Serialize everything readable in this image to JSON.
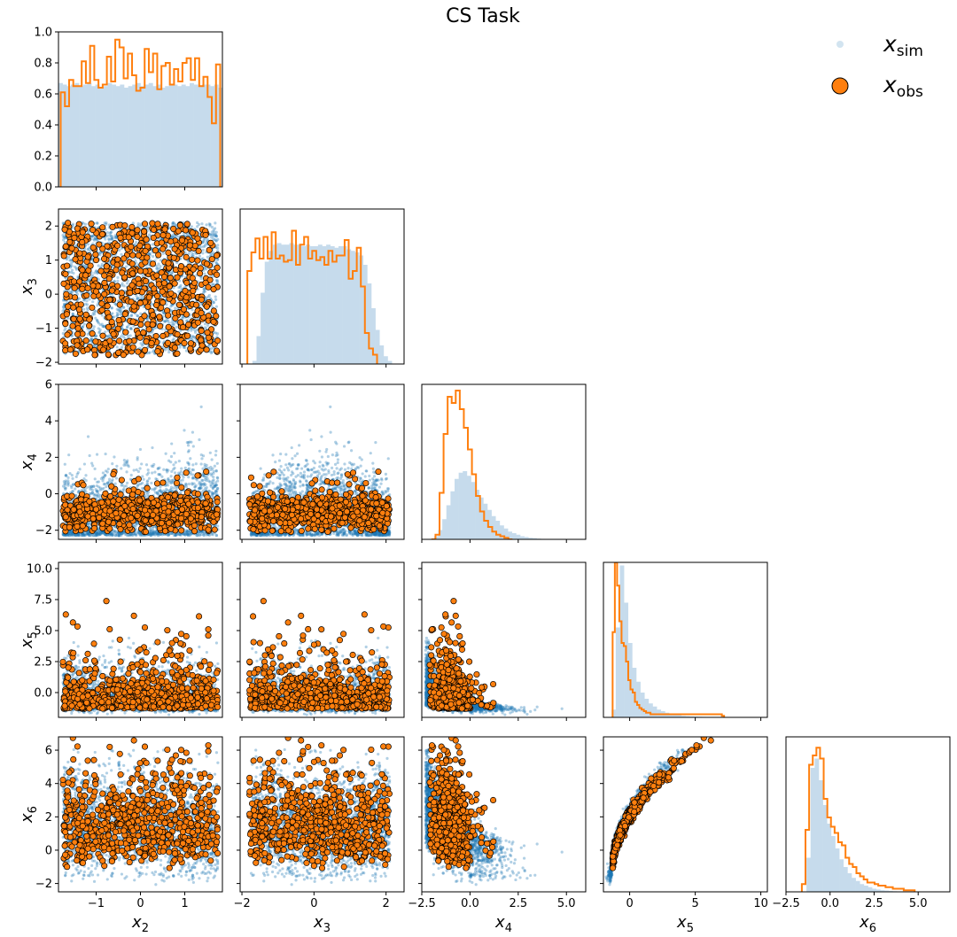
{
  "chart_data": {
    "type": "scatter",
    "title": "CS Task",
    "legend": {
      "placement": "top-right",
      "entries": [
        {
          "symbol": "x",
          "sub": "sim",
          "style": "light blue point"
        },
        {
          "symbol": "x",
          "sub": "obs",
          "style": "orange circle with black edge"
        }
      ]
    },
    "variables": [
      {
        "name": "x",
        "sub": "2"
      },
      {
        "name": "x",
        "sub": "3"
      },
      {
        "name": "x",
        "sub": "4"
      },
      {
        "name": "x",
        "sub": "5"
      },
      {
        "name": "x",
        "sub": "6"
      }
    ],
    "ranges": [
      [
        -1.85,
        1.85
      ],
      [
        -2.05,
        2.5
      ],
      [
        -2.5,
        6.0
      ],
      [
        -2.0,
        10.5
      ],
      [
        -2.5,
        6.8
      ]
    ],
    "diag_ylim": [
      0.0,
      1.0
    ],
    "diag_yticks": [
      "0.0",
      "0.2",
      "0.4",
      "0.6",
      "0.8",
      "1.0"
    ],
    "row_ticks": {
      "1": [
        "-2",
        "-1",
        "0",
        "1",
        "2"
      ],
      "2": [
        "-2",
        "0",
        "2",
        "4",
        "6"
      ],
      "3": [
        "0.0",
        "2.5",
        "5.0",
        "7.5",
        "10.0"
      ],
      "4": [
        "-2",
        "0",
        "2",
        "4",
        "6"
      ]
    },
    "col_ticks": {
      "0": [
        "-1",
        "0",
        "1"
      ],
      "1": [
        "-2",
        "0",
        "2"
      ],
      "2": [
        "-2.5",
        "0.0",
        "2.5",
        "5.0"
      ],
      "3": [
        "0",
        "5",
        "10"
      ],
      "4": [
        "-2.5",
        "0.0",
        "2.5",
        "5.0"
      ]
    },
    "tick_values": {
      "-2.5": -2.5,
      "-2": -2,
      "-1": -1,
      "0": 0,
      "0.0": 0,
      "1": 1,
      "2": 2,
      "2.5": 2.5,
      "4": 4,
      "5": 5,
      "5.0": 5,
      "6": 6,
      "7.5": 7.5,
      "10": 10,
      "10.0": 10,
      "0.2": 0.2,
      "0.4": 0.4,
      "0.6": 0.6,
      "0.8": 0.8,
      "1.0": 1.0
    },
    "sim_hist": [
      [
        0.67,
        0.66,
        0.65,
        0.66,
        0.67,
        0.65,
        0.66,
        0.67,
        0.65,
        0.66,
        0.64,
        0.65,
        0.67,
        0.66,
        0.65,
        0.66,
        0.64,
        0.65,
        0.66,
        0.67,
        0.65,
        0.66,
        0.67,
        0.65,
        0.66,
        0.64,
        0.65,
        0.66,
        0.66,
        0.65,
        0.66,
        0.65,
        0.67,
        0.66,
        0.65,
        0.66,
        0.66,
        0.65,
        0.66,
        0.64
      ],
      [
        0.0,
        0.0,
        0.0,
        0.02,
        0.18,
        0.46,
        0.66,
        0.73,
        0.77,
        0.78,
        0.77,
        0.77,
        0.78,
        0.77,
        0.77,
        0.76,
        0.77,
        0.76,
        0.76,
        0.77,
        0.76,
        0.77,
        0.76,
        0.75,
        0.76,
        0.76,
        0.74,
        0.73,
        0.72,
        0.7,
        0.64,
        0.52,
        0.36,
        0.22,
        0.12,
        0.05,
        0.02,
        0.0,
        0.0,
        0.0
      ],
      [
        0.0,
        0.0,
        0.0,
        0.02,
        0.06,
        0.13,
        0.22,
        0.31,
        0.39,
        0.43,
        0.44,
        0.41,
        0.37,
        0.32,
        0.27,
        0.23,
        0.19,
        0.15,
        0.12,
        0.09,
        0.07,
        0.05,
        0.04,
        0.03,
        0.02,
        0.015,
        0.01,
        0.008,
        0.005,
        0.003,
        0.002,
        0.001,
        0,
        0,
        0,
        0,
        0,
        0,
        0,
        0
      ],
      [
        0.0,
        0.0,
        0.05,
        0.58,
        0.98,
        0.74,
        0.48,
        0.32,
        0.23,
        0.16,
        0.12,
        0.09,
        0.07,
        0.05,
        0.04,
        0.03,
        0.025,
        0.02,
        0.015,
        0.01,
        0.008,
        0.006,
        0.005,
        0.004,
        0.003,
        0.002,
        0.002,
        0.001,
        0.001,
        0.001,
        0,
        0,
        0,
        0,
        0,
        0,
        0,
        0,
        0,
        0
      ],
      [
        0.0,
        0.0,
        0.0,
        0.0,
        0.0,
        0.22,
        0.8,
        0.86,
        0.72,
        0.56,
        0.44,
        0.36,
        0.28,
        0.21,
        0.16,
        0.12,
        0.09,
        0.07,
        0.05,
        0.04,
        0.03,
        0.02,
        0.015,
        0.01,
        0.008,
        0.006,
        0.004,
        0.003,
        0.002,
        0.001,
        0.001,
        0,
        0,
        0,
        0,
        0,
        0,
        0,
        0,
        0
      ]
    ],
    "obs_hist": [
      [
        0.61,
        0.52,
        0.69,
        0.65,
        0.65,
        0.81,
        0.67,
        0.91,
        0.69,
        0.64,
        0.66,
        0.84,
        0.68,
        0.95,
        0.9,
        0.7,
        0.86,
        0.72,
        0.62,
        0.64,
        0.89,
        0.74,
        0.86,
        0.63,
        0.78,
        0.8,
        0.66,
        0.76,
        0.68,
        0.8,
        0.83,
        0.69,
        0.83,
        0.65,
        0.71,
        0.58,
        0.41,
        0.79
      ],
      [
        0.6,
        0.72,
        0.81,
        0.68,
        0.82,
        0.68,
        0.85,
        0.68,
        0.7,
        0.66,
        0.67,
        0.86,
        0.64,
        0.77,
        0.82,
        0.68,
        0.73,
        0.67,
        0.69,
        0.64,
        0.73,
        0.66,
        0.7,
        0.7,
        0.8,
        0.55,
        0.6,
        0.75,
        0.5,
        0.2,
        0.1,
        0.06
      ],
      [
        0.0,
        0.03,
        0.3,
        0.68,
        0.92,
        0.88,
        0.96,
        0.84,
        0.72,
        0.58,
        0.42,
        0.28,
        0.18,
        0.12,
        0.08,
        0.05,
        0.03,
        0.02,
        0.01,
        0.0
      ],
      [
        0.55,
        1.0,
        0.85,
        0.62,
        0.48,
        0.46,
        0.36,
        0.24,
        0.18,
        0.16,
        0.1,
        0.08,
        0.06,
        0.05,
        0.04,
        0.03,
        0.03,
        0.02,
        0.02,
        0.02,
        0.02,
        0.02,
        0.02,
        0.02,
        0.02,
        0.02,
        0.02,
        0.02,
        0.02,
        0.02,
        0.02,
        0.02,
        0.02,
        0.02,
        0.02,
        0.02,
        0.02,
        0.02,
        0.02,
        0.02,
        0.02,
        0.02,
        0.02,
        0.02,
        0.02,
        0.02,
        0.02,
        0.02,
        0.02,
        0.01
      ],
      [
        0.05,
        0.4,
        0.82,
        0.88,
        0.93,
        0.86,
        0.6,
        0.48,
        0.42,
        0.38,
        0.32,
        0.3,
        0.22,
        0.18,
        0.16,
        0.12,
        0.1,
        0.08,
        0.06,
        0.06,
        0.05,
        0.04,
        0.04,
        0.03,
        0.03,
        0.02,
        0.02,
        0.02,
        0.01,
        0.01,
        0.01
      ]
    ],
    "obs_hist_ranges": [
      [
        -1.8,
        1.8
      ],
      [
        -1.85,
        1.75
      ],
      [
        -2.0,
        2.2
      ],
      [
        -1.3,
        7.2
      ],
      [
        -1.6,
        4.8
      ]
    ],
    "colors": {
      "sim_point": "#1f77b4",
      "sim_hist": "#c6dbec",
      "obs": "#ff7f0e",
      "obs_edge": "#000000"
    }
  }
}
